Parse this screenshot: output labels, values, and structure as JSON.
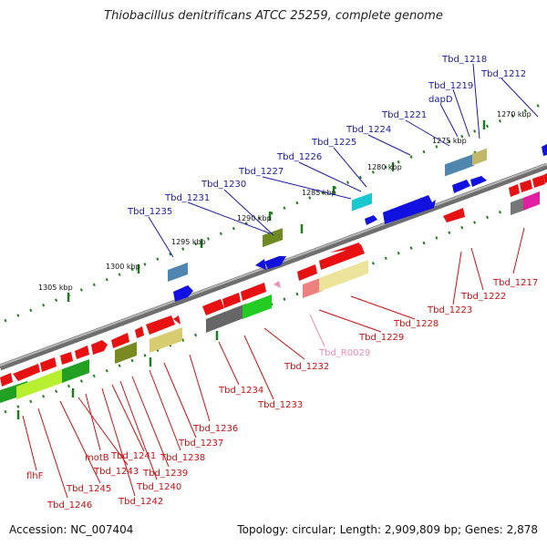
{
  "title": "Thiobacillus denitrificans ATCC 25259, complete genome",
  "footer": {
    "accession": "Accession: NC_007404",
    "summary": "Topology: circular; Length: 2,909,809 bp; Genes: 2,878"
  },
  "scale_labels": [
    "1270 kbp",
    "1275 kbp",
    "1280 kbp",
    "1285 kbp",
    "1290 kbp",
    "1295 kbp",
    "1300 kbp",
    "1305 kbp"
  ],
  "colors": {
    "strand_line": "#8a8a8a",
    "tick": "#1e7d1e",
    "gene_forward_label": "#1a1aa8",
    "gene_reverse_label": "#cc1010",
    "rna_label": "#f08cb8",
    "cds_forward": "#1010e0",
    "cds_reverse": "#e81010",
    "cog_blue": "#4f86b0",
    "cog_olive": "#7a8a20",
    "cog_green": "#22a022",
    "cog_khaki": "#d8d080",
    "cog_gray": "#666666",
    "cog_cyan": "#18c8d0",
    "cog_magenta": "#e020a0"
  },
  "upper_labels": [
    "Tbd_1218",
    "Tbd_1212",
    "Tbd_1219",
    "dapD",
    "Tbd_1221",
    "Tbd_1224",
    "Tbd_1225",
    "Tbd_1226",
    "Tbd_1227",
    "Tbd_1230",
    "Tbd_1231",
    "Tbd_1235"
  ],
  "lower_labels": [
    "Tbd_1217",
    "Tbd_1222",
    "Tbd_1223",
    "Tbd_1228",
    "Tbd_1229",
    "Tbd_R0029",
    "Tbd_1232",
    "Tbd_1233",
    "Tbd_1234",
    "Tbd_1236",
    "Tbd_1237",
    "Tbd_1238",
    "Tbd_1239",
    "Tbd_1240",
    "Tbd_1241",
    "Tbd_1242",
    "motB",
    "Tbd_1243",
    "Tbd_1245",
    "Tbd_1246",
    "flhF"
  ]
}
